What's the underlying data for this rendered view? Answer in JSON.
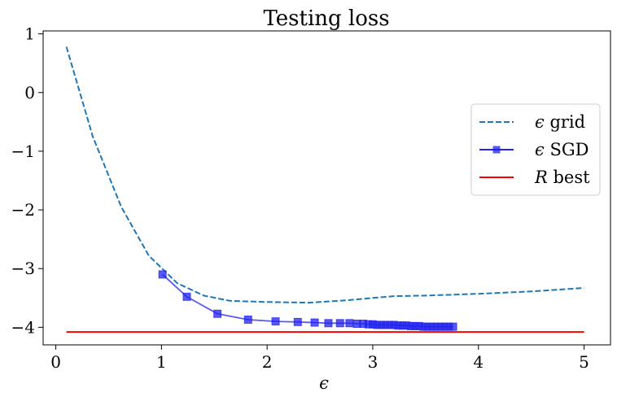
{
  "chart_data": {
    "type": "line",
    "title": "Testing loss",
    "xlabel": "ϵ",
    "ylabel": "",
    "xlim": [
      -0.12,
      5.25
    ],
    "ylim": [
      -4.3,
      1.05
    ],
    "xticks": [
      0,
      1,
      2,
      3,
      4,
      5
    ],
    "yticks": [
      1,
      0,
      -1,
      -2,
      -3,
      -4
    ],
    "xtick_labels": [
      "0",
      "1",
      "2",
      "3",
      "4",
      "5"
    ],
    "ytick_labels": [
      "1",
      "0",
      "−1",
      "−2",
      "−3",
      "−4"
    ],
    "grid": false,
    "legend_position": "right",
    "series": [
      {
        "name": "ϵ grid",
        "style": "dashed",
        "color": "#1f77b4",
        "x": [
          0.1,
          0.35,
          0.62,
          0.88,
          1.15,
          1.4,
          1.65,
          2.0,
          2.4,
          2.75,
          3.0,
          3.2,
          3.5,
          4.0,
          4.5,
          5.0
        ],
        "y": [
          0.78,
          -0.75,
          -1.95,
          -2.78,
          -3.25,
          -3.46,
          -3.55,
          -3.57,
          -3.58,
          -3.54,
          -3.5,
          -3.47,
          -3.46,
          -3.43,
          -3.39,
          -3.33
        ]
      },
      {
        "name": "ϵ SGD",
        "style": "solid-square-markers",
        "color": "#2222ee",
        "x": [
          1.01,
          1.24,
          1.53,
          1.82,
          2.08,
          2.29,
          2.45,
          2.58,
          2.69,
          2.78,
          2.85,
          2.91,
          2.96,
          3.0,
          3.04,
          3.08,
          3.12,
          3.16,
          3.2,
          3.24,
          3.28,
          3.32,
          3.36,
          3.4,
          3.44,
          3.48,
          3.52,
          3.56,
          3.6,
          3.64,
          3.68,
          3.72,
          3.76
        ],
        "y": [
          -3.1,
          -3.48,
          -3.77,
          -3.87,
          -3.9,
          -3.91,
          -3.92,
          -3.93,
          -3.93,
          -3.93,
          -3.94,
          -3.94,
          -3.95,
          -3.95,
          -3.96,
          -3.96,
          -3.96,
          -3.96,
          -3.96,
          -3.97,
          -3.97,
          -3.97,
          -3.98,
          -3.98,
          -3.98,
          -3.99,
          -3.99,
          -3.99,
          -3.99,
          -3.99,
          -3.99,
          -3.99,
          -3.99
        ]
      },
      {
        "name": "R best",
        "style": "solid",
        "color": "#ff0000",
        "x": [
          0.1,
          5.0
        ],
        "y": [
          -4.08,
          -4.08
        ]
      }
    ],
    "legend": [
      {
        "prefix": "ϵ",
        "text": " grid"
      },
      {
        "prefix": "ϵ",
        "text": " SGD"
      },
      {
        "prefix": "R",
        "text": " best"
      }
    ]
  }
}
